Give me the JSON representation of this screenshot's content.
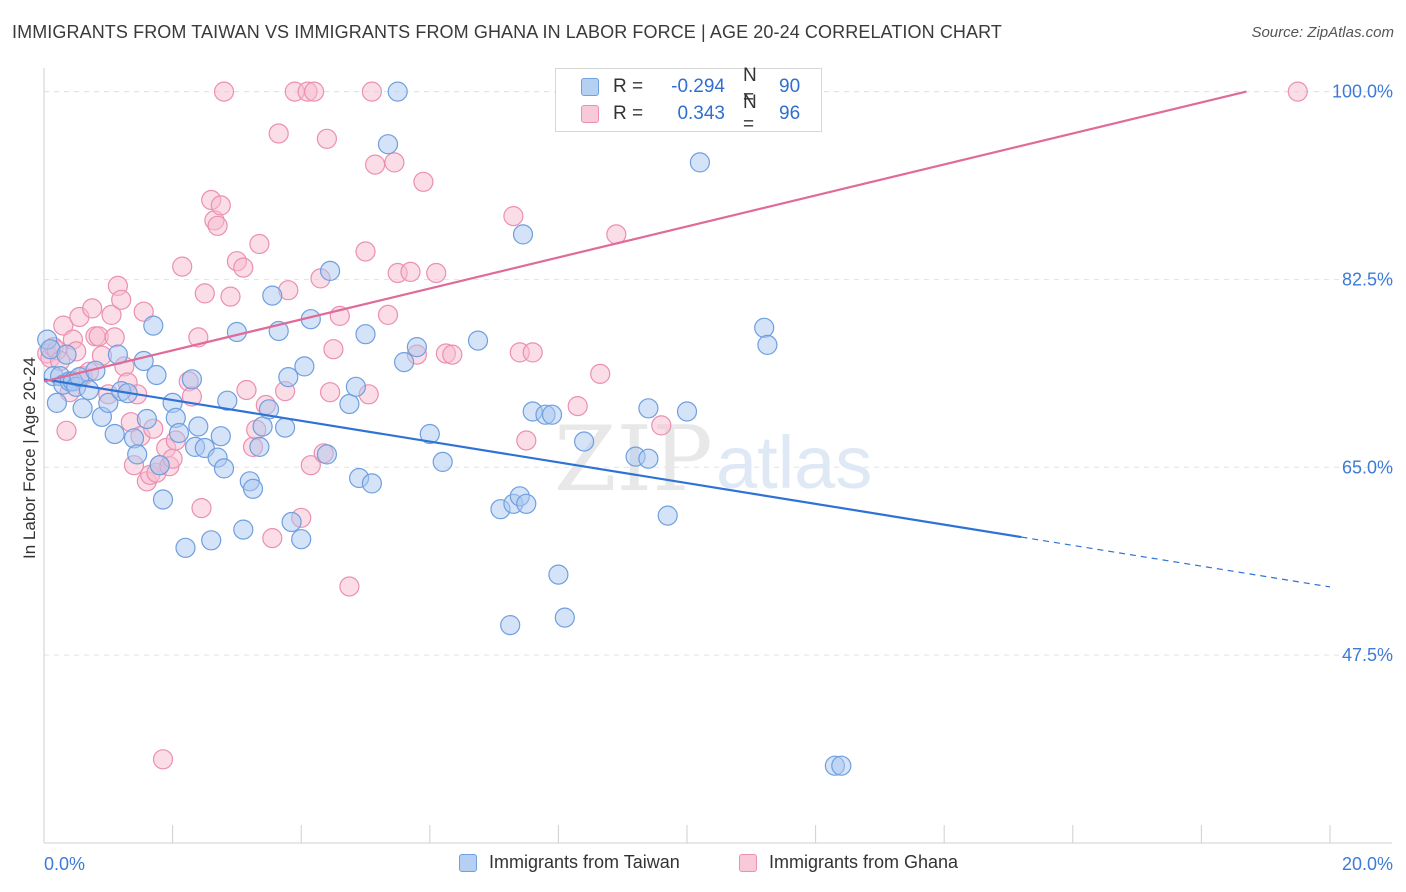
{
  "title": "IMMIGRANTS FROM TAIWAN VS IMMIGRANTS FROM GHANA IN LABOR FORCE | AGE 20-24 CORRELATION CHART",
  "source": "Source: ZipAtlas.com",
  "watermark": {
    "zip": "ZIP",
    "atlas": "atlas"
  },
  "legend": {
    "r_label": "R =",
    "n_label": "N =",
    "rows": [
      {
        "r": "-0.294",
        "n": "90"
      },
      {
        "r": "0.343",
        "n": "96"
      }
    ]
  },
  "colors": {
    "taiwan_fill": "#a9c8f0",
    "taiwan_stroke": "#6f9fe0",
    "taiwan_line": "#2f72d6",
    "ghana_fill": "#f6bcd0",
    "ghana_stroke": "#ec8fb0",
    "ghana_line": "#e06a98",
    "axis_label": "#3d7bd6",
    "grid": "#e4e4e4"
  },
  "chart_data": {
    "type": "scatter",
    "title": "IMMIGRANTS FROM TAIWAN VS IMMIGRANTS FROM GHANA IN LABOR FORCE | AGE 20-24 CORRELATION CHART",
    "xlabel": "",
    "ylabel": "In Labor Force | Age 20-24",
    "xlim": [
      0,
      20
    ],
    "ylim": [
      30,
      101.5
    ],
    "x_tick_labels": [
      "0.0%",
      "20.0%"
    ],
    "y_ticks": [
      47.5,
      65.0,
      82.5,
      100.0
    ],
    "y_tick_labels": [
      "47.5%",
      "65.0%",
      "82.5%",
      "100.0%"
    ],
    "grid": true,
    "legend_position": "bottom",
    "series": [
      {
        "name": "Immigrants from Taiwan",
        "points": [
          [
            0.05,
            76.9
          ],
          [
            0.1,
            76.0
          ],
          [
            0.15,
            73.5
          ],
          [
            0.2,
            71.0
          ],
          [
            0.25,
            73.5
          ],
          [
            0.3,
            72.7
          ],
          [
            0.35,
            75.5
          ],
          [
            0.4,
            73.0
          ],
          [
            0.45,
            73.0
          ],
          [
            0.5,
            72.5
          ],
          [
            0.55,
            73.4
          ],
          [
            0.6,
            70.5
          ],
          [
            0.7,
            72.2
          ],
          [
            0.8,
            74.0
          ],
          [
            0.9,
            69.7
          ],
          [
            1.0,
            71.0
          ],
          [
            1.1,
            68.1
          ],
          [
            1.15,
            75.5
          ],
          [
            1.2,
            72.1
          ],
          [
            1.3,
            71.9
          ],
          [
            1.4,
            67.7
          ],
          [
            1.45,
            66.2
          ],
          [
            1.55,
            74.9
          ],
          [
            1.6,
            69.5
          ],
          [
            1.7,
            78.2
          ],
          [
            1.75,
            73.6
          ],
          [
            1.8,
            65.2
          ],
          [
            1.85,
            62.0
          ],
          [
            2.0,
            71.0
          ],
          [
            2.05,
            69.6
          ],
          [
            2.1,
            68.2
          ],
          [
            2.2,
            57.5
          ],
          [
            2.3,
            73.2
          ],
          [
            2.35,
            66.9
          ],
          [
            2.4,
            68.8
          ],
          [
            2.5,
            66.8
          ],
          [
            2.6,
            58.2
          ],
          [
            2.7,
            65.9
          ],
          [
            2.75,
            67.9
          ],
          [
            2.8,
            64.9
          ],
          [
            2.85,
            71.2
          ],
          [
            3.0,
            77.6
          ],
          [
            3.1,
            59.2
          ],
          [
            3.2,
            63.7
          ],
          [
            3.25,
            63.0
          ],
          [
            3.35,
            66.9
          ],
          [
            3.4,
            68.8
          ],
          [
            3.5,
            70.4
          ],
          [
            3.55,
            81.0
          ],
          [
            3.65,
            77.7
          ],
          [
            3.75,
            68.7
          ],
          [
            3.8,
            73.4
          ],
          [
            3.85,
            59.9
          ],
          [
            4.0,
            58.3
          ],
          [
            4.05,
            74.4
          ],
          [
            4.15,
            78.8
          ],
          [
            4.4,
            66.2
          ],
          [
            4.45,
            83.3
          ],
          [
            4.75,
            70.9
          ],
          [
            4.85,
            72.5
          ],
          [
            4.9,
            64.0
          ],
          [
            5.0,
            77.4
          ],
          [
            5.1,
            63.5
          ],
          [
            5.35,
            95.1
          ],
          [
            5.5,
            100.0
          ],
          [
            5.6,
            74.8
          ],
          [
            5.8,
            76.2
          ],
          [
            6.0,
            68.1
          ],
          [
            6.2,
            65.5
          ],
          [
            6.75,
            76.8
          ],
          [
            7.1,
            61.1
          ],
          [
            7.25,
            50.3
          ],
          [
            7.3,
            61.6
          ],
          [
            7.4,
            62.3
          ],
          [
            7.45,
            86.7
          ],
          [
            7.5,
            61.6
          ],
          [
            7.6,
            70.2
          ],
          [
            7.8,
            69.9
          ],
          [
            7.9,
            69.9
          ],
          [
            8.0,
            55.0
          ],
          [
            8.1,
            51.0
          ],
          [
            8.4,
            67.4
          ],
          [
            9.2,
            66.0
          ],
          [
            9.4,
            70.5
          ],
          [
            9.4,
            65.8
          ],
          [
            9.7,
            60.5
          ],
          [
            10.0,
            70.2
          ],
          [
            10.2,
            93.4
          ],
          [
            11.2,
            78.0
          ],
          [
            11.25,
            76.4
          ],
          [
            12.3,
            37.2
          ],
          [
            12.4,
            37.2
          ]
        ],
        "trend": {
          "x": [
            0.0,
            15.2
          ],
          "y": [
            73.2,
            58.5
          ],
          "dashed_extension_to_x": 20.0
        }
      },
      {
        "name": "Immigrants from Ghana",
        "points": [
          [
            0.05,
            75.6
          ],
          [
            0.1,
            75.2
          ],
          [
            0.15,
            76.2
          ],
          [
            0.2,
            75.9
          ],
          [
            0.25,
            74.9
          ],
          [
            0.3,
            78.2
          ],
          [
            0.35,
            68.4
          ],
          [
            0.4,
            72.0
          ],
          [
            0.45,
            76.9
          ],
          [
            0.5,
            75.8
          ],
          [
            0.55,
            79.0
          ],
          [
            0.6,
            73.5
          ],
          [
            0.7,
            73.9
          ],
          [
            0.75,
            79.8
          ],
          [
            0.8,
            77.2
          ],
          [
            0.85,
            77.2
          ],
          [
            0.9,
            75.4
          ],
          [
            1.0,
            71.8
          ],
          [
            1.05,
            79.2
          ],
          [
            1.1,
            77.1
          ],
          [
            1.15,
            81.9
          ],
          [
            1.2,
            80.6
          ],
          [
            1.25,
            74.4
          ],
          [
            1.3,
            72.9
          ],
          [
            1.35,
            69.2
          ],
          [
            1.4,
            65.2
          ],
          [
            1.45,
            71.8
          ],
          [
            1.5,
            67.9
          ],
          [
            1.55,
            79.5
          ],
          [
            1.6,
            63.7
          ],
          [
            1.65,
            64.3
          ],
          [
            1.7,
            68.6
          ],
          [
            1.75,
            64.5
          ],
          [
            1.8,
            65.2
          ],
          [
            1.85,
            37.8
          ],
          [
            1.9,
            66.8
          ],
          [
            1.95,
            65.1
          ],
          [
            2.0,
            65.8
          ],
          [
            2.05,
            67.5
          ],
          [
            2.15,
            83.7
          ],
          [
            2.25,
            73.0
          ],
          [
            2.3,
            71.6
          ],
          [
            2.4,
            77.1
          ],
          [
            2.45,
            61.2
          ],
          [
            2.5,
            81.2
          ],
          [
            2.6,
            89.9
          ],
          [
            2.65,
            88.0
          ],
          [
            2.7,
            87.5
          ],
          [
            2.75,
            89.4
          ],
          [
            2.8,
            100.0
          ],
          [
            2.9,
            80.9
          ],
          [
            3.0,
            84.2
          ],
          [
            3.1,
            83.6
          ],
          [
            3.15,
            72.2
          ],
          [
            3.25,
            66.9
          ],
          [
            3.3,
            68.5
          ],
          [
            3.35,
            85.8
          ],
          [
            3.45,
            70.8
          ],
          [
            3.55,
            58.4
          ],
          [
            3.65,
            96.1
          ],
          [
            3.75,
            72.1
          ],
          [
            3.8,
            81.5
          ],
          [
            3.9,
            100.0
          ],
          [
            4.0,
            60.3
          ],
          [
            4.1,
            100.0
          ],
          [
            4.15,
            65.2
          ],
          [
            4.2,
            100.0
          ],
          [
            4.3,
            82.6
          ],
          [
            4.35,
            66.3
          ],
          [
            4.4,
            95.6
          ],
          [
            4.45,
            72.0
          ],
          [
            4.5,
            76.0
          ],
          [
            4.6,
            79.1
          ],
          [
            4.75,
            53.9
          ],
          [
            5.0,
            85.1
          ],
          [
            5.05,
            71.8
          ],
          [
            5.1,
            100.0
          ],
          [
            5.15,
            93.2
          ],
          [
            5.35,
            79.2
          ],
          [
            5.45,
            93.4
          ],
          [
            5.5,
            83.1
          ],
          [
            5.7,
            83.2
          ],
          [
            5.8,
            75.5
          ],
          [
            5.9,
            91.6
          ],
          [
            6.1,
            83.1
          ],
          [
            6.25,
            75.6
          ],
          [
            6.35,
            75.5
          ],
          [
            7.3,
            88.4
          ],
          [
            7.4,
            75.7
          ],
          [
            7.5,
            67.5
          ],
          [
            7.6,
            75.7
          ],
          [
            8.3,
            70.7
          ],
          [
            8.65,
            73.7
          ],
          [
            8.9,
            86.7
          ],
          [
            9.6,
            68.9
          ],
          [
            19.5,
            100.0
          ]
        ],
        "trend": {
          "x": [
            0.0,
            18.7
          ],
          "y": [
            73.0,
            100.0
          ]
        }
      }
    ]
  }
}
